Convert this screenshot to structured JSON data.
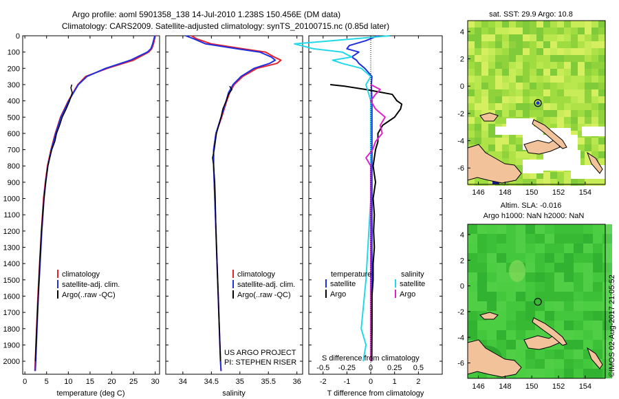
{
  "header": {
    "line1": "Argo profile: aoml 5901358_138 14-Jul-2010 1.238S 150.456E (DM data)",
    "line2": "Climatology: CARS2009. Satellite-adjusted climatology: synTS_20100715.nc (0.85d later)"
  },
  "colors": {
    "climatology": "#e8202a",
    "satellite": "#1f2fe0",
    "argo": "#000000",
    "salinity_satellite": "#22d8e8",
    "salinity_argo": "#e020c8",
    "land": "#f2c29a"
  },
  "chart_data": [
    {
      "type": "line",
      "id": "temperature",
      "xlabel": "temperature (deg C)",
      "ylabel": "",
      "xlim": [
        -0.5,
        31
      ],
      "ylim": [
        2080,
        0
      ],
      "xticks": [
        0,
        5,
        10,
        15,
        20,
        25,
        30
      ],
      "xtick_labels": [
        "0",
        "5",
        "10",
        "15",
        "20",
        "25",
        "30"
      ],
      "yticks": [
        0,
        100,
        200,
        300,
        400,
        500,
        600,
        700,
        800,
        900,
        1000,
        1100,
        1200,
        1300,
        1400,
        1500,
        1600,
        1700,
        1800,
        1900,
        2000
      ],
      "ytick_labels": [
        "0",
        "100",
        "200",
        "300",
        "400",
        "500",
        "600",
        "700",
        "800",
        "900",
        "1000",
        "1100",
        "1200",
        "1300",
        "1400",
        "1500",
        "1600",
        "1700",
        "1800",
        "1900",
        "2000"
      ],
      "legend": [
        "climatology",
        "satellite-adj. clim.",
        "Argo(..raw -QC)"
      ],
      "series": [
        {
          "name": "climatology",
          "color": "#e8202a",
          "depth": [
            0,
            50,
            80,
            100,
            150,
            200,
            250,
            300,
            350,
            400,
            500,
            600,
            700,
            800,
            900,
            1000,
            1200,
            1400,
            1600,
            1800,
            2000,
            2060
          ],
          "values": [
            30,
            29.6,
            29.2,
            28.5,
            25,
            19,
            14,
            12.2,
            11.1,
            10,
            8.2,
            7,
            6,
            5.2,
            4.7,
            4.3,
            3.8,
            3.4,
            3,
            2.7,
            2.4,
            2.3
          ]
        },
        {
          "name": "satellite-adj. clim.",
          "color": "#1f2fe0",
          "depth": [
            0,
            50,
            80,
            100,
            150,
            200,
            250,
            300,
            350,
            400,
            500,
            600,
            700,
            800,
            900,
            1000,
            1200,
            1400,
            1600,
            1800,
            2000,
            2060
          ],
          "values": [
            29.9,
            29.4,
            29,
            28.2,
            24.3,
            18.6,
            14.3,
            12.3,
            11.2,
            10.1,
            8.3,
            7.1,
            6.1,
            5.3,
            4.8,
            4.4,
            3.9,
            3.5,
            3.1,
            2.8,
            2.5,
            2.4
          ]
        },
        {
          "name": "Argo(..raw -QC)",
          "color": "#000000",
          "depth": [
            300,
            320,
            350,
            400,
            450,
            500,
            550,
            600,
            650,
            700,
            800,
            900,
            1000,
            1100,
            1200,
            1400,
            1600,
            1800,
            2000
          ],
          "values": [
            10.8,
            10.6,
            10.9,
            10.3,
            9.5,
            8.6,
            8,
            7.3,
            6.9,
            6.2,
            5.3,
            4.8,
            4.4,
            4.1,
            3.8,
            3.4,
            3.1,
            2.7,
            2.4
          ]
        }
      ]
    },
    {
      "type": "line",
      "id": "salinity",
      "xlabel": "salinity",
      "xlim": [
        33.7,
        36.1
      ],
      "ylim": [
        2080,
        0
      ],
      "xticks": [
        34,
        34.5,
        35,
        35.5,
        36
      ],
      "xtick_labels": [
        "34",
        "34.5",
        "35",
        "35.5",
        "36"
      ],
      "legend": [
        "climatology",
        "satellite-adj. clim.",
        "Argo(..raw -QC)"
      ],
      "annotation": [
        "US ARGO PROJECT",
        "PI: STEPHEN RISER"
      ],
      "series": [
        {
          "name": "climatology",
          "color": "#e8202a",
          "depth": [
            0,
            20,
            50,
            80,
            100,
            130,
            150,
            170,
            200,
            250,
            300,
            350,
            400,
            500,
            600,
            700,
            800,
            1000,
            1200,
            1400,
            1600,
            1800,
            2000,
            2060
          ],
          "values": [
            34.15,
            34.25,
            34.5,
            35.05,
            35.45,
            35.6,
            35.72,
            35.65,
            35.3,
            35.05,
            34.9,
            34.82,
            34.77,
            34.68,
            34.58,
            34.54,
            34.54,
            34.56,
            34.58,
            34.6,
            34.62,
            34.64,
            34.66,
            34.67
          ]
        },
        {
          "name": "satellite-adj. clim.",
          "color": "#1f2fe0",
          "depth": [
            0,
            20,
            50,
            80,
            100,
            130,
            150,
            170,
            200,
            250,
            300,
            350,
            400,
            500,
            600,
            700,
            800,
            1000,
            1200,
            1400,
            1600,
            1800,
            2000,
            2060
          ],
          "values": [
            34.05,
            34.2,
            34.4,
            34.95,
            35.35,
            35.55,
            35.62,
            35.52,
            35.25,
            35.02,
            34.88,
            34.8,
            34.76,
            34.67,
            34.58,
            34.54,
            34.54,
            34.56,
            34.58,
            34.6,
            34.62,
            34.64,
            34.66,
            34.67
          ]
        },
        {
          "name": "Argo(..raw -QC)",
          "color": "#000000",
          "depth": [
            310,
            330,
            360,
            400,
            450,
            500,
            600,
            700,
            750,
            800,
            900,
            1000,
            1200,
            1400,
            1600,
            1800,
            2000
          ],
          "values": [
            34.82,
            34.86,
            34.8,
            34.76,
            34.7,
            34.67,
            34.59,
            34.55,
            34.52,
            34.54,
            34.56,
            34.57,
            34.58,
            34.6,
            34.62,
            34.64,
            34.66
          ]
        }
      ]
    },
    {
      "type": "line",
      "id": "difference",
      "xlabel_top": "S difference from climatology",
      "xlabel": "T difference from climatology",
      "xlim": [
        -2.6,
        3
      ],
      "ylim": [
        2080,
        0
      ],
      "xticks": [
        -2,
        -1,
        0,
        1,
        2
      ],
      "xtick_labels": [
        "-2",
        "-1",
        "0",
        "1",
        "2"
      ],
      "s_xticks": [
        -0.5,
        -0.25,
        0,
        0.25,
        0.5
      ],
      "s_xtick_labels": [
        "-0.5",
        "-0.25",
        "0",
        "0.25",
        "0.5"
      ],
      "legend_titles": [
        "temperature",
        "salinity"
      ],
      "legend": [
        "satellite",
        "Argo",
        "satellite",
        "Argo"
      ],
      "series": [
        {
          "name": "temperature satellite",
          "color": "#1f2fe0",
          "depth": [
            0,
            30,
            60,
            80,
            100,
            130,
            150,
            170,
            200,
            250,
            300,
            400,
            600,
            800,
            1000,
            1500,
            2000
          ],
          "values": [
            0.3,
            -0.2,
            -0.9,
            -1,
            -0.5,
            -0.8,
            -0.6,
            -0.5,
            -0.25,
            0.05,
            0.02,
            0.05,
            0.05,
            0.05,
            0.05,
            0.05,
            0.05
          ]
        },
        {
          "name": "temperature Argo",
          "color": "#000000",
          "depth": [
            300,
            310,
            330,
            360,
            400,
            420,
            450,
            480,
            500,
            520,
            550,
            600,
            650,
            700,
            800,
            900,
            1000,
            1100,
            1200,
            1300,
            1400,
            1500,
            1600,
            1800,
            2000
          ],
          "values": [
            -1.7,
            -1.1,
            -0.2,
            0.9,
            1.1,
            1.3,
            1.25,
            1.1,
            1.0,
            0.8,
            0.5,
            0.3,
            0.3,
            0.2,
            0.1,
            0.2,
            0.1,
            0.15,
            0.12,
            0.15,
            0.1,
            0.1,
            0.05,
            0.05,
            0.02
          ]
        },
        {
          "name": "salinity satellite",
          "color": "#22d8e8",
          "depth": [
            0,
            30,
            50,
            80,
            100,
            130,
            150,
            170,
            200,
            250,
            300,
            400,
            600,
            800,
            1000,
            1500,
            1800,
            1900,
            2000
          ],
          "values": [
            0.2,
            -0.4,
            -0.8,
            -0.6,
            -0.3,
            -0.2,
            -0.4,
            -0.3,
            -0.1,
            0,
            -0.05,
            0,
            0,
            0,
            0,
            -0.05,
            -0.1,
            -0.05,
            -0.08
          ]
        },
        {
          "name": "salinity Argo",
          "color": "#e020c8",
          "depth": [
            300,
            330,
            360,
            400,
            450,
            500,
            550,
            600,
            650,
            700,
            750,
            800,
            1000,
            1500,
            2000
          ],
          "values": [
            0,
            0.1,
            0.05,
            0,
            0.05,
            0.15,
            0.1,
            0.12,
            0.05,
            0.02,
            -0.05,
            0,
            0,
            0,
            0
          ]
        }
      ]
    },
    {
      "type": "heatmap",
      "id": "sst-map",
      "title": "sat. SST: 29.9 Argo: 10.8",
      "xlim": [
        145.2,
        155.5
      ],
      "ylim": [
        -7.2,
        4.8
      ],
      "xticks": [
        146,
        148,
        150,
        152,
        154
      ],
      "xtick_labels": [
        "146",
        "148",
        "150",
        "152",
        "154"
      ],
      "yticks": [
        4,
        2,
        0,
        -2,
        -4,
        -6
      ],
      "ytick_labels": [
        "4",
        "2",
        "0",
        "-2",
        "-4",
        "-6"
      ],
      "argo_position": {
        "lon": 150.456,
        "lat": -1.238
      }
    },
    {
      "type": "heatmap",
      "id": "sla-map",
      "title_line1": "Altim. SLA: -0.016",
      "title_line2": "Argo h1000: NaN h2000: NaN",
      "xlim": [
        145.2,
        155.5
      ],
      "ylim": [
        -7.2,
        4.8
      ],
      "xticks": [
        146,
        148,
        150,
        152,
        154
      ],
      "xtick_labels": [
        "146",
        "148",
        "150",
        "152",
        "154"
      ],
      "yticks": [
        4,
        2,
        0,
        -2,
        -4,
        -6
      ],
      "ytick_labels": [
        "4",
        "2",
        "0",
        "-2",
        "-4",
        "-6"
      ],
      "argo_position": {
        "lon": 150.456,
        "lat": -1.238
      }
    }
  ],
  "footer": {
    "timestamp": "©IMOS 02-Aug-2017 21:05:52"
  }
}
